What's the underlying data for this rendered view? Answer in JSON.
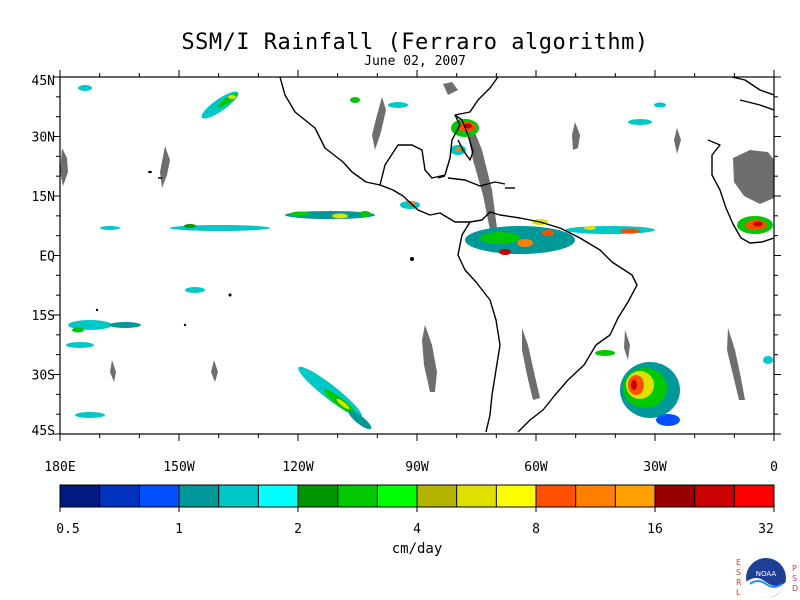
{
  "title": "SSM/I Rainfall (Ferraro algorithm)",
  "subtitle": "June 02, 2007",
  "map": {
    "lat_labels": [
      "45N",
      "30N",
      "15N",
      "EQ",
      "15S",
      "30S",
      "45S"
    ],
    "lon_labels": [
      "180E",
      "150W",
      "120W",
      "90W",
      "60W",
      "30W",
      "0"
    ],
    "lat_range": [
      -45,
      45
    ],
    "lon_range": [
      -180,
      0
    ]
  },
  "colorbar": {
    "units": "cm/day",
    "tick_labels": [
      "0.5",
      "1",
      "2",
      "4",
      "8",
      "16",
      "32"
    ],
    "colors": [
      "#001a80",
      "#0033c0",
      "#0050ff",
      "#009898",
      "#00c8c8",
      "#00ffff",
      "#009600",
      "#00c800",
      "#00ff00",
      "#b4b400",
      "#e0e000",
      "#ffff00",
      "#ff5000",
      "#ff8000",
      "#ffa000",
      "#960000",
      "#c80000",
      "#ff0000"
    ]
  },
  "logo": {
    "left_letters": "ESRL",
    "right_letters": "PSD",
    "center_text": "NOAA"
  }
}
